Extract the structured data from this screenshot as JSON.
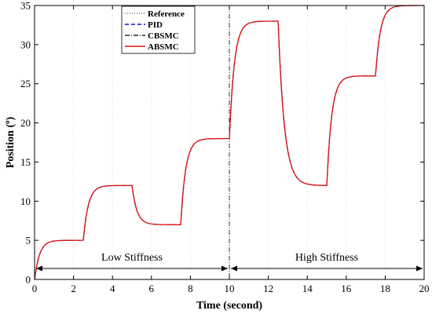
{
  "chart_data": {
    "type": "line",
    "title": "",
    "xlabel": "Time (second)",
    "ylabel_text": "Position (",
    "ylabel_sup": "o",
    "ylabel_end": ")",
    "xlim": [
      0,
      20
    ],
    "ylim": [
      0,
      35
    ],
    "xticks": [
      0,
      2,
      4,
      6,
      8,
      10,
      12,
      14,
      16,
      18,
      20
    ],
    "yticks": [
      0,
      5,
      10,
      15,
      20,
      25,
      30,
      35
    ],
    "grid": "vertical-dotted",
    "legend_position": "top-left",
    "series": [
      {
        "name": "Reference",
        "color": "#555555",
        "style": "dotted"
      },
      {
        "name": "PID",
        "color": "#1010d0",
        "style": "dashed"
      },
      {
        "name": "CBSMC",
        "color": "#000000",
        "style": "dashdot"
      },
      {
        "name": "ABSMC",
        "color": "#e01010",
        "style": "solid"
      }
    ],
    "segments": [
      {
        "t_start": 0,
        "t_end": 2.5,
        "from": 0,
        "to": 5,
        "tau": 0.25
      },
      {
        "t_start": 2.5,
        "t_end": 5,
        "from": 5,
        "to": 12,
        "tau": 0.25
      },
      {
        "t_start": 5,
        "t_end": 7.5,
        "from": 12,
        "to": 7,
        "tau": 0.25
      },
      {
        "t_start": 7.5,
        "t_end": 10,
        "from": 7,
        "to": 18,
        "tau": 0.25
      },
      {
        "t_start": 10,
        "t_end": 12.5,
        "from": 18,
        "to": 33,
        "tau": 0.25
      },
      {
        "t_start": 12.5,
        "t_end": 15,
        "from": 33,
        "to": 12,
        "tau": 0.32
      },
      {
        "t_start": 15,
        "t_end": 17.5,
        "from": 12,
        "to": 26,
        "tau": 0.25
      },
      {
        "t_start": 17.5,
        "t_end": 20,
        "from": 26,
        "to": 35,
        "tau": 0.25
      }
    ],
    "divider_x": 10,
    "annotations": [
      {
        "text": "Low Stiffness",
        "x_from": 0,
        "x_to": 10,
        "y": 1.4,
        "label_y": 2.4
      },
      {
        "text": "High Stiffness",
        "x_from": 10,
        "x_to": 20,
        "y": 1.4,
        "label_y": 2.4
      }
    ]
  }
}
